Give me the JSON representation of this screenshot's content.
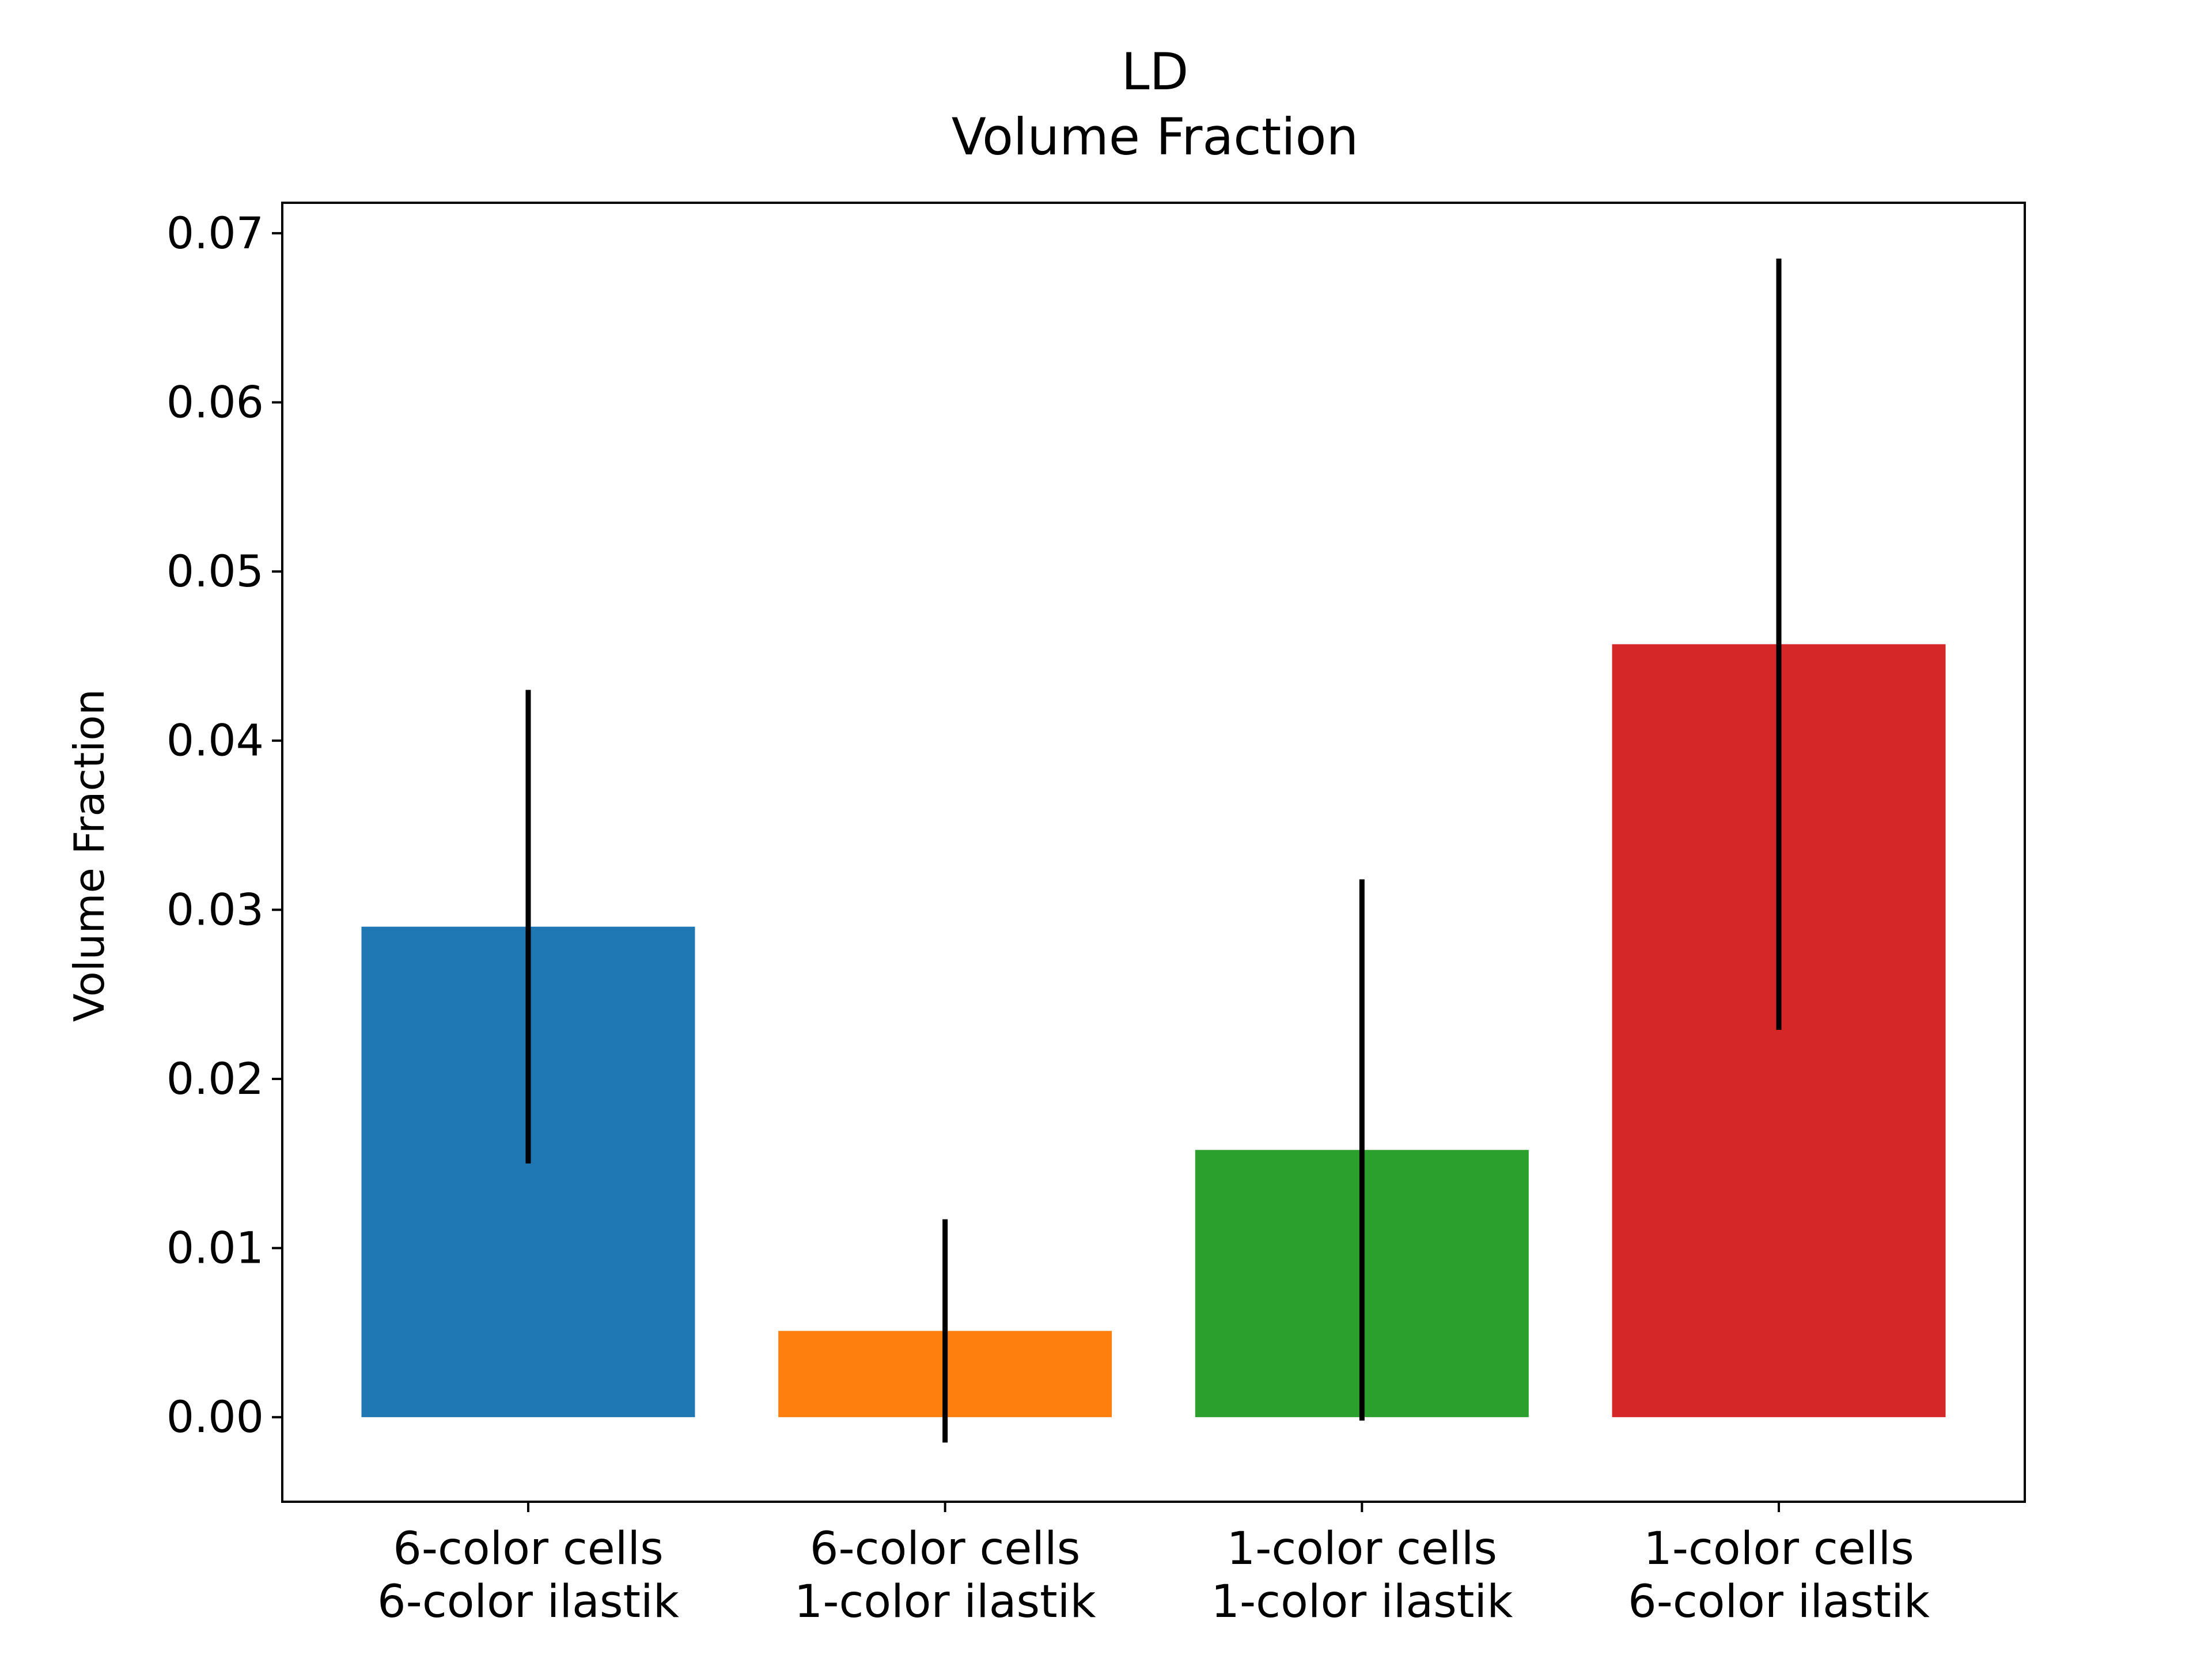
{
  "chart_data": {
    "type": "bar",
    "title": [
      "LD",
      "Volume Fraction"
    ],
    "xlabel": "",
    "ylabel": "Volume Fraction",
    "ylim": [
      -0.005,
      0.0718
    ],
    "yticks": [
      "0.00",
      "0.01",
      "0.02",
      "0.03",
      "0.04",
      "0.05",
      "0.06",
      "0.07"
    ],
    "grid": false,
    "categories": [
      [
        "6-color cells",
        "6-color ilastik"
      ],
      [
        "6-color cells",
        "1-color ilastik"
      ],
      [
        "1-color cells",
        "1-color ilastik"
      ],
      [
        "1-color cells",
        "6-color ilastik"
      ]
    ],
    "values": [
      0.029,
      0.0051,
      0.0158,
      0.0457
    ],
    "errors": [
      0.014,
      0.0066,
      0.016,
      0.0228
    ],
    "colors": [
      "#1f77b4",
      "#ff7f0e",
      "#2ca02c",
      "#d62728"
    ],
    "error_color": "#000000"
  }
}
